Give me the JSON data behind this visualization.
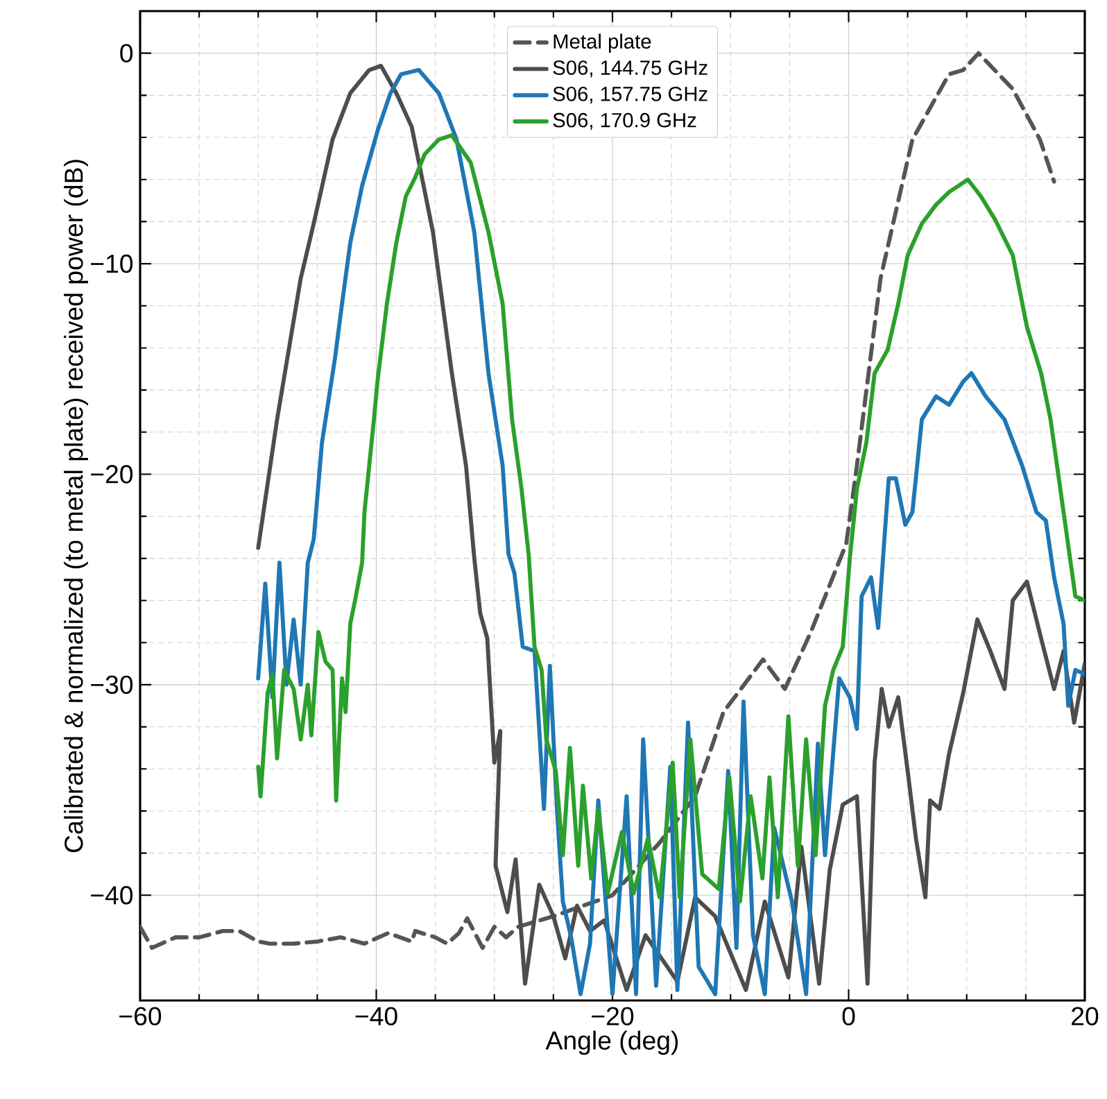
{
  "chart_data": {
    "type": "line",
    "xlabel": "Angle (deg)",
    "ylabel": "Calibrated & normalized (to metal plate) received power (dB)",
    "xlim": [
      -60,
      20
    ],
    "ylim": [
      -45,
      2
    ],
    "xticks": [
      {
        "value": -60,
        "label": "−60"
      },
      {
        "value": -40,
        "label": "−40"
      },
      {
        "value": -20,
        "label": "−20"
      },
      0,
      20
    ],
    "yticks": [
      {
        "value": -40,
        "label": "−40"
      },
      {
        "value": -30,
        "label": "−30"
      },
      {
        "value": -20,
        "label": "−20"
      },
      {
        "value": -10,
        "label": "−10"
      },
      0
    ],
    "grid": true,
    "legend": "top",
    "series": [
      {
        "name": "Metal plate",
        "color": "#555555",
        "line_style": "dashed",
        "x": [
          -60,
          -59,
          -57,
          -55,
          -53,
          -51.6,
          -50,
          -49,
          -47,
          -45,
          -43,
          -41,
          -39,
          -37,
          -36.7,
          -35,
          -34,
          -33,
          -32.3,
          -31,
          -30,
          -29,
          -28,
          -25,
          -20,
          -16,
          -13,
          -10.6,
          -7.25,
          -5.4,
          -3.2,
          -0.2,
          0.7,
          2.7,
          5.4,
          8.5,
          9.7,
          11,
          13.9,
          16.2,
          17.4
        ],
        "values": [
          -41.5,
          -42.5,
          -42,
          -42,
          -41.7,
          -41.7,
          -42.2,
          -42.3,
          -42.3,
          -42.2,
          -42,
          -42.3,
          -41.8,
          -42.2,
          -41.7,
          -42,
          -42.3,
          -41.8,
          -41.1,
          -42.5,
          -41.5,
          -42,
          -41.5,
          -41,
          -40,
          -37.5,
          -35.3,
          -31.3,
          -28.8,
          -30.2,
          -27.5,
          -23.3,
          -19.6,
          -10.7,
          -4.1,
          -1.0,
          -0.8,
          0,
          -1.7,
          -4.1,
          -6.1
        ]
      },
      {
        "name": "S06, 144.75 GHz",
        "color": "#4d4d4d",
        "line_style": "solid",
        "x": [
          -50,
          -48.4,
          -46.4,
          -45.3,
          -43.7,
          -42.2,
          -40.6,
          -39.6,
          -38.3,
          -37,
          -35.2,
          -33.6,
          -32.4,
          -31.7,
          -31.2,
          -30.6,
          -30,
          -29.5,
          -29.9,
          -28.9,
          -28.2,
          -27.4,
          -26.2,
          -25,
          -24,
          -23,
          -21.9,
          -20.7,
          -18.8,
          -17.2,
          -14.5,
          -13,
          -11.3,
          -8.7,
          -7.1,
          -5.1,
          -4,
          -2.5,
          -1.6,
          -0.5,
          0.7,
          1.6,
          2.2,
          2.8,
          3.4,
          4.2,
          5,
          5.7,
          6.5,
          6.9,
          7.7,
          8.5,
          9.7,
          10.9,
          12,
          13.2,
          13.9,
          15.1,
          16.3,
          17.4,
          18.2,
          19.1,
          20
        ],
        "values": [
          -23.5,
          -17.4,
          -10.7,
          -8.1,
          -4.1,
          -1.9,
          -0.8,
          -0.6,
          -1.9,
          -3.5,
          -8.5,
          -15.2,
          -19.6,
          -24,
          -26.6,
          -27.8,
          -33.7,
          -32.2,
          -38.6,
          -40.8,
          -38.3,
          -44.2,
          -39.5,
          -41,
          -43,
          -40.5,
          -41.7,
          -41.2,
          -44.5,
          -41.9,
          -44.1,
          -40.1,
          -41,
          -44.5,
          -40.3,
          -43.9,
          -37.7,
          -44.2,
          -38.8,
          -35.7,
          -35.3,
          -44.2,
          -33.7,
          -30.2,
          -32,
          -30.6,
          -34.1,
          -37.3,
          -40.1,
          -35.5,
          -35.9,
          -33.3,
          -30.4,
          -26.9,
          -28.4,
          -30.2,
          -26,
          -25.1,
          -27.8,
          -30.2,
          -28.4,
          -31.8,
          -29
        ]
      },
      {
        "name": "S06, 157.75 GHz",
        "color": "#1f77b4",
        "line_style": "solid",
        "x": [
          -50,
          -49.4,
          -48.8,
          -48.2,
          -47.6,
          -47,
          -46.4,
          -45.8,
          -45.3,
          -44.6,
          -43.5,
          -42.9,
          -42.2,
          -41.2,
          -39.9,
          -38.8,
          -37.9,
          -36.4,
          -34.7,
          -33.2,
          -31.7,
          -30.5,
          -29.9,
          -29.3,
          -28.8,
          -28.3,
          -27.6,
          -26.6,
          -25.8,
          -25.3,
          -24.7,
          -24.2,
          -23.5,
          -22.7,
          -21.9,
          -21.2,
          -20,
          -18.8,
          -18,
          -17.4,
          -16.3,
          -15.1,
          -14.5,
          -13.6,
          -12.7,
          -11.3,
          -10.2,
          -9.5,
          -8.9,
          -8.1,
          -7.1,
          -6.3,
          -4.8,
          -3.6,
          -2.6,
          -2,
          -0.8,
          0.1,
          0.7,
          1.1,
          1.9,
          2.5,
          3,
          3.4,
          4,
          4.8,
          5.4,
          6.2,
          7.4,
          8.5,
          9.7,
          10.4,
          11.6,
          13.2,
          14.7,
          15.9,
          16.7,
          17.4,
          18.2,
          18.6,
          19.2,
          20
        ],
        "values": [
          -29.7,
          -25.2,
          -30.6,
          -24.2,
          -30,
          -26.9,
          -30,
          -24.2,
          -23.1,
          -18.5,
          -14.5,
          -11.9,
          -9,
          -6.3,
          -3.7,
          -1.9,
          -1.0,
          -0.8,
          -1.9,
          -4.1,
          -8.5,
          -15.2,
          -17.4,
          -19.6,
          -23.8,
          -24.7,
          -28.2,
          -28.4,
          -35.9,
          -29.1,
          -35.9,
          -40.3,
          -42,
          -44.7,
          -42.3,
          -35.5,
          -44.7,
          -35.3,
          -44.7,
          -32.6,
          -44.3,
          -33.9,
          -44.5,
          -31.8,
          -43.4,
          -44.7,
          -34.1,
          -42.5,
          -30.8,
          -41.9,
          -44.7,
          -36.8,
          -40.3,
          -44.7,
          -32.8,
          -38.1,
          -29.7,
          -30.6,
          -32.1,
          -25.8,
          -24.9,
          -27.3,
          -23.3,
          -20.2,
          -20.2,
          -22.4,
          -21.8,
          -17.4,
          -16.3,
          -16.7,
          -15.6,
          -15.2,
          -16.3,
          -17.4,
          -19.6,
          -21.8,
          -22.2,
          -24.9,
          -27.1,
          -31,
          -29.3,
          -29.5
        ]
      },
      {
        "name": "S06, 170.9 GHz",
        "color": "#2ca02c",
        "line_style": "solid",
        "x": [
          -50,
          -49.8,
          -49.2,
          -48.8,
          -48.4,
          -47.8,
          -47,
          -46.4,
          -45.8,
          -45.5,
          -44.9,
          -44.3,
          -43.7,
          -43.4,
          -42.9,
          -42.6,
          -42.2,
          -41.8,
          -41.2,
          -41,
          -40.2,
          -39.9,
          -39.1,
          -38.3,
          -37.5,
          -36.7,
          -35.9,
          -34.7,
          -33.6,
          -32,
          -30.5,
          -29.3,
          -28.5,
          -27.7,
          -27.1,
          -26.6,
          -26,
          -25.6,
          -24.8,
          -24.2,
          -23.6,
          -22.9,
          -22.5,
          -21.8,
          -21.2,
          -20.4,
          -19.2,
          -18.2,
          -17,
          -16,
          -14.9,
          -14.3,
          -13.4,
          -12.4,
          -11,
          -10.1,
          -9.2,
          -8.3,
          -7.3,
          -6.7,
          -6,
          -5.1,
          -4.3,
          -3.6,
          -2.8,
          -2,
          -1.3,
          -0.5,
          0.1,
          0.7,
          1.5,
          2.2,
          3.3,
          4.2,
          5,
          6.2,
          7.4,
          8.5,
          9.3,
          10.1,
          11.2,
          12.4,
          13.9,
          15.1,
          16.3,
          17.1,
          18.2,
          19.2,
          20
        ],
        "values": [
          -33.9,
          -35.3,
          -30.4,
          -29.5,
          -33.5,
          -29.3,
          -30.2,
          -32.6,
          -30,
          -32.4,
          -27.5,
          -28.9,
          -29.3,
          -35.5,
          -29.7,
          -31.3,
          -27.1,
          -26,
          -24.2,
          -21.8,
          -17.4,
          -15.6,
          -11.9,
          -9,
          -6.8,
          -5.9,
          -4.8,
          -4.1,
          -3.9,
          -5.2,
          -8.5,
          -11.9,
          -17.4,
          -20.7,
          -23.8,
          -28.2,
          -29.3,
          -32.6,
          -34.1,
          -38.1,
          -33,
          -38.6,
          -34.8,
          -39.2,
          -35.9,
          -39.9,
          -37,
          -39.9,
          -37.3,
          -40.1,
          -33.7,
          -40.1,
          -32.6,
          -39,
          -39.7,
          -34.4,
          -40.3,
          -35.3,
          -39.2,
          -34.4,
          -40.1,
          -31.5,
          -38.6,
          -32.6,
          -38.1,
          -31,
          -29.3,
          -28.2,
          -24,
          -20.7,
          -18.5,
          -15.2,
          -14.1,
          -11.9,
          -9.6,
          -8.1,
          -7.2,
          -6.6,
          -6.3,
          -6,
          -6.8,
          -7.9,
          -9.6,
          -13,
          -15.2,
          -17.4,
          -21.8,
          -25.8,
          -26
        ]
      }
    ]
  }
}
